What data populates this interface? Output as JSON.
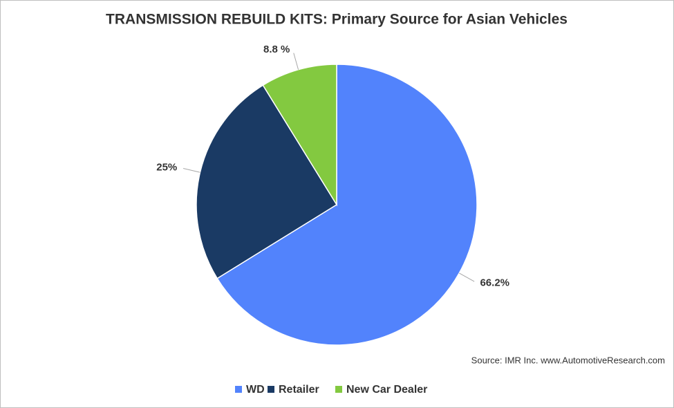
{
  "chart_data": {
    "type": "pie",
    "title": "TRANSMISSION REBUILD KITS: Primary Source for Asian Vehicles",
    "categories": [
      "WD",
      "Retailer",
      "New Car Dealer"
    ],
    "values": [
      66.2,
      25,
      8.8
    ],
    "value_labels": [
      "66.2%",
      "25%",
      "8.8 %"
    ],
    "colors": [
      "#5283fc",
      "#1a3a64",
      "#83c940"
    ],
    "source": "Source: IMR Inc. www.AutomotiveResearch.com",
    "legend": "bottom"
  }
}
